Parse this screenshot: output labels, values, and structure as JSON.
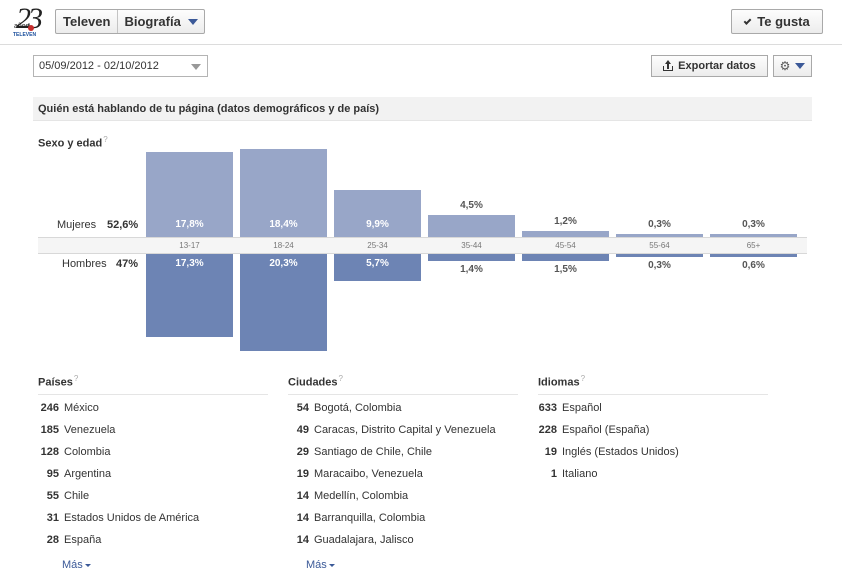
{
  "header": {
    "logo": {
      "number": "23",
      "small_text": "años",
      "brand": "TELEVEN"
    },
    "page_name": "Televen",
    "page_menu": "Biografía",
    "like_button": "Te gusta"
  },
  "controls": {
    "date_range": "05/09/2012 - 02/10/2012",
    "export_button": "Exportar datos",
    "settings_icon": "gear-icon"
  },
  "section": {
    "title": "Quién está hablando de tu página (datos demográficos y de país)",
    "gender_age_title": "Sexo y edad",
    "help_mark": "?"
  },
  "chart_data": {
    "type": "bar",
    "title": "Sexo y edad",
    "categories": [
      "13-17",
      "18-24",
      "25-34",
      "35-44",
      "45-54",
      "55-64",
      "65+"
    ],
    "series": [
      {
        "name": "Mujeres",
        "total": "52,6%",
        "values": [
          17.8,
          18.4,
          9.9,
          4.5,
          1.2,
          0.3,
          0.3
        ],
        "labels": [
          "17,8%",
          "18,4%",
          "9,9%",
          "4,5%",
          "1,2%",
          "0,3%",
          "0,3%"
        ],
        "color": "#98a6c8"
      },
      {
        "name": "Hombres",
        "total": "47%",
        "values": [
          17.3,
          20.3,
          5.7,
          1.4,
          1.5,
          0.3,
          0.6
        ],
        "labels": [
          "17,3%",
          "20,3%",
          "5,7%",
          "1,4%",
          "1,5%",
          "0,3%",
          "0,6%"
        ],
        "color": "#6d84b4"
      }
    ],
    "ylim": [
      0,
      20.3
    ]
  },
  "lists": {
    "countries": {
      "title": "Países",
      "items": [
        {
          "count": "246",
          "name": "México"
        },
        {
          "count": "185",
          "name": "Venezuela"
        },
        {
          "count": "128",
          "name": "Colombia"
        },
        {
          "count": "95",
          "name": "Argentina"
        },
        {
          "count": "55",
          "name": "Chile"
        },
        {
          "count": "31",
          "name": "Estados Unidos de América"
        },
        {
          "count": "28",
          "name": "España"
        }
      ],
      "more": "Más"
    },
    "cities": {
      "title": "Ciudades",
      "items": [
        {
          "count": "54",
          "name": "Bogotá, Colombia"
        },
        {
          "count": "49",
          "name": "Caracas, Distrito Capital y Venezuela"
        },
        {
          "count": "29",
          "name": "Santiago de Chile, Chile"
        },
        {
          "count": "19",
          "name": "Maracaibo, Venezuela"
        },
        {
          "count": "14",
          "name": "Medellín, Colombia"
        },
        {
          "count": "14",
          "name": "Barranquilla, Colombia"
        },
        {
          "count": "14",
          "name": "Guadalajara, Jalisco"
        }
      ],
      "more": "Más"
    },
    "languages": {
      "title": "Idiomas",
      "items": [
        {
          "count": "633",
          "name": "Español"
        },
        {
          "count": "228",
          "name": "Español (España)"
        },
        {
          "count": "19",
          "name": "Inglés (Estados Unidos)"
        },
        {
          "count": "1",
          "name": "Italiano"
        }
      ]
    }
  }
}
